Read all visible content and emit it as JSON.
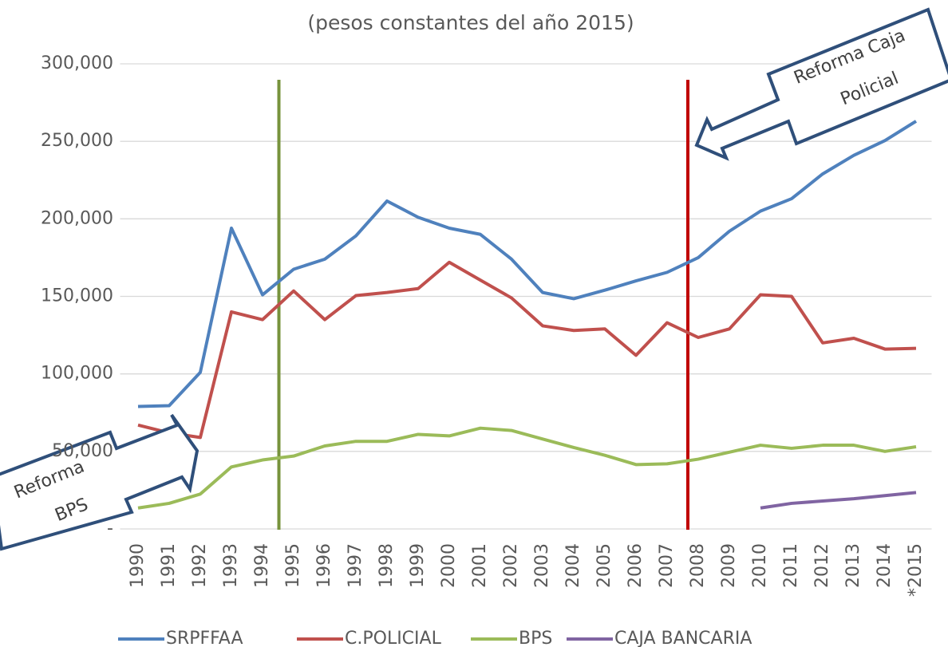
{
  "chart_data": {
    "type": "line",
    "title": "(pesos constantes del año 2015)",
    "categories": [
      "1990",
      "1991",
      "1992",
      "1993",
      "1994",
      "1995",
      "1996",
      "1997",
      "1998",
      "1999",
      "2000",
      "2001",
      "2002",
      "2003",
      "2004",
      "2005",
      "2006",
      "2007",
      "2008",
      "2009",
      "2010",
      "2011",
      "2012",
      "2013",
      "2014",
      "*2015"
    ],
    "series": [
      {
        "name": "SRPFFAA",
        "color": "#4f81bd",
        "values": [
          79000,
          79500,
          101000,
          194000,
          151000,
          167500,
          174000,
          189000,
          211500,
          201000,
          194000,
          190000,
          174000,
          152500,
          148500,
          154000,
          160000,
          165500,
          175000,
          192000,
          205000,
          213000,
          229000,
          241000,
          250500,
          263000
        ]
      },
      {
        "name": "C.POLICIAL",
        "color": "#c0504d",
        "values": [
          67000,
          62000,
          59000,
          140000,
          135000,
          153500,
          135000,
          150500,
          152500,
          155000,
          172000,
          160500,
          149000,
          131000,
          128000,
          129000,
          112000,
          133000,
          123500,
          129000,
          151000,
          150000,
          120000,
          123000,
          116000,
          116500
        ]
      },
      {
        "name": "BPS",
        "color": "#9bbb59",
        "values": [
          13500,
          16500,
          22500,
          40000,
          44500,
          47000,
          53500,
          56500,
          56500,
          61000,
          60000,
          65000,
          63500,
          58000,
          52500,
          47500,
          41500,
          42000,
          45000,
          49500,
          54000,
          52000,
          54000,
          54000,
          50000,
          53000
        ]
      },
      {
        "name": "CAJA BANCARIA",
        "color": "#8064a2",
        "values": [
          null,
          null,
          null,
          null,
          null,
          null,
          null,
          null,
          null,
          null,
          null,
          null,
          null,
          null,
          null,
          null,
          null,
          null,
          null,
          null,
          13500,
          16500,
          18000,
          19500,
          21500,
          23500
        ]
      }
    ],
    "ylim": [
      0,
      300000
    ],
    "yticks": [
      {
        "value": 0,
        "label": "-"
      },
      {
        "value": 50000,
        "label": "50,000"
      },
      {
        "value": 100000,
        "label": "100,000"
      },
      {
        "value": 150000,
        "label": "150,000"
      },
      {
        "value": 200000,
        "label": "200,000"
      },
      {
        "value": 250000,
        "label": "250,000"
      },
      {
        "value": 300000,
        "label": "300,000"
      }
    ],
    "grid": true,
    "legend": "bottom",
    "annotations": [
      {
        "lines": [
          "Reforma Caja",
          "Policial"
        ]
      },
      {
        "lines": [
          "Reforma",
          "BPS"
        ]
      }
    ]
  }
}
